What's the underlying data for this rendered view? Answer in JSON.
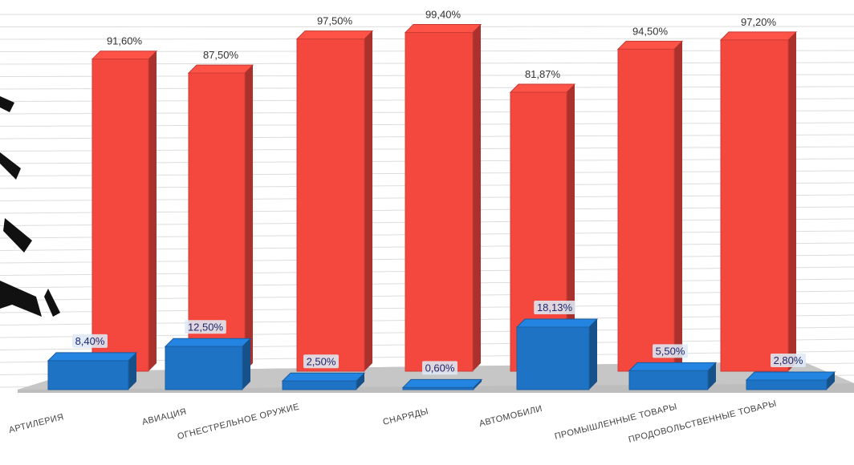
{
  "chart_data": {
    "type": "bar",
    "categories": [
      "АРТИЛЕРИЯ",
      "АВИАЦИЯ",
      "ОГНЕСТРЕЛЬНОЕ ОРУЖИЕ",
      "СНАРЯДЫ",
      "АВТОМОБИЛИ",
      "ПРОМЫШЛЕННЫЕ ТОВАРЫ",
      "ПРОДОВОЛЬСТВЕННЫЕ ТОВАРЫ"
    ],
    "series": [
      {
        "values": [
          91.6,
          87.5,
          97.5,
          99.4,
          81.87,
          94.5,
          97.2
        ],
        "labels": [
          "91,60%",
          "87,50%",
          "97,50%",
          "99,40%",
          "81,87%",
          "94,50%",
          "97,20%"
        ],
        "color": "#f4483f"
      },
      {
        "values": [
          8.4,
          12.5,
          2.5,
          0.6,
          18.13,
          5.5,
          2.8
        ],
        "labels": [
          "8,40%",
          "12,50%",
          "2,50%",
          "0,60%",
          "18,13%",
          "5,50%",
          "2,80%"
        ],
        "color": "#1f73c4"
      }
    ],
    "ylim": [
      0,
      100
    ],
    "grid": true,
    "legend": "none"
  }
}
